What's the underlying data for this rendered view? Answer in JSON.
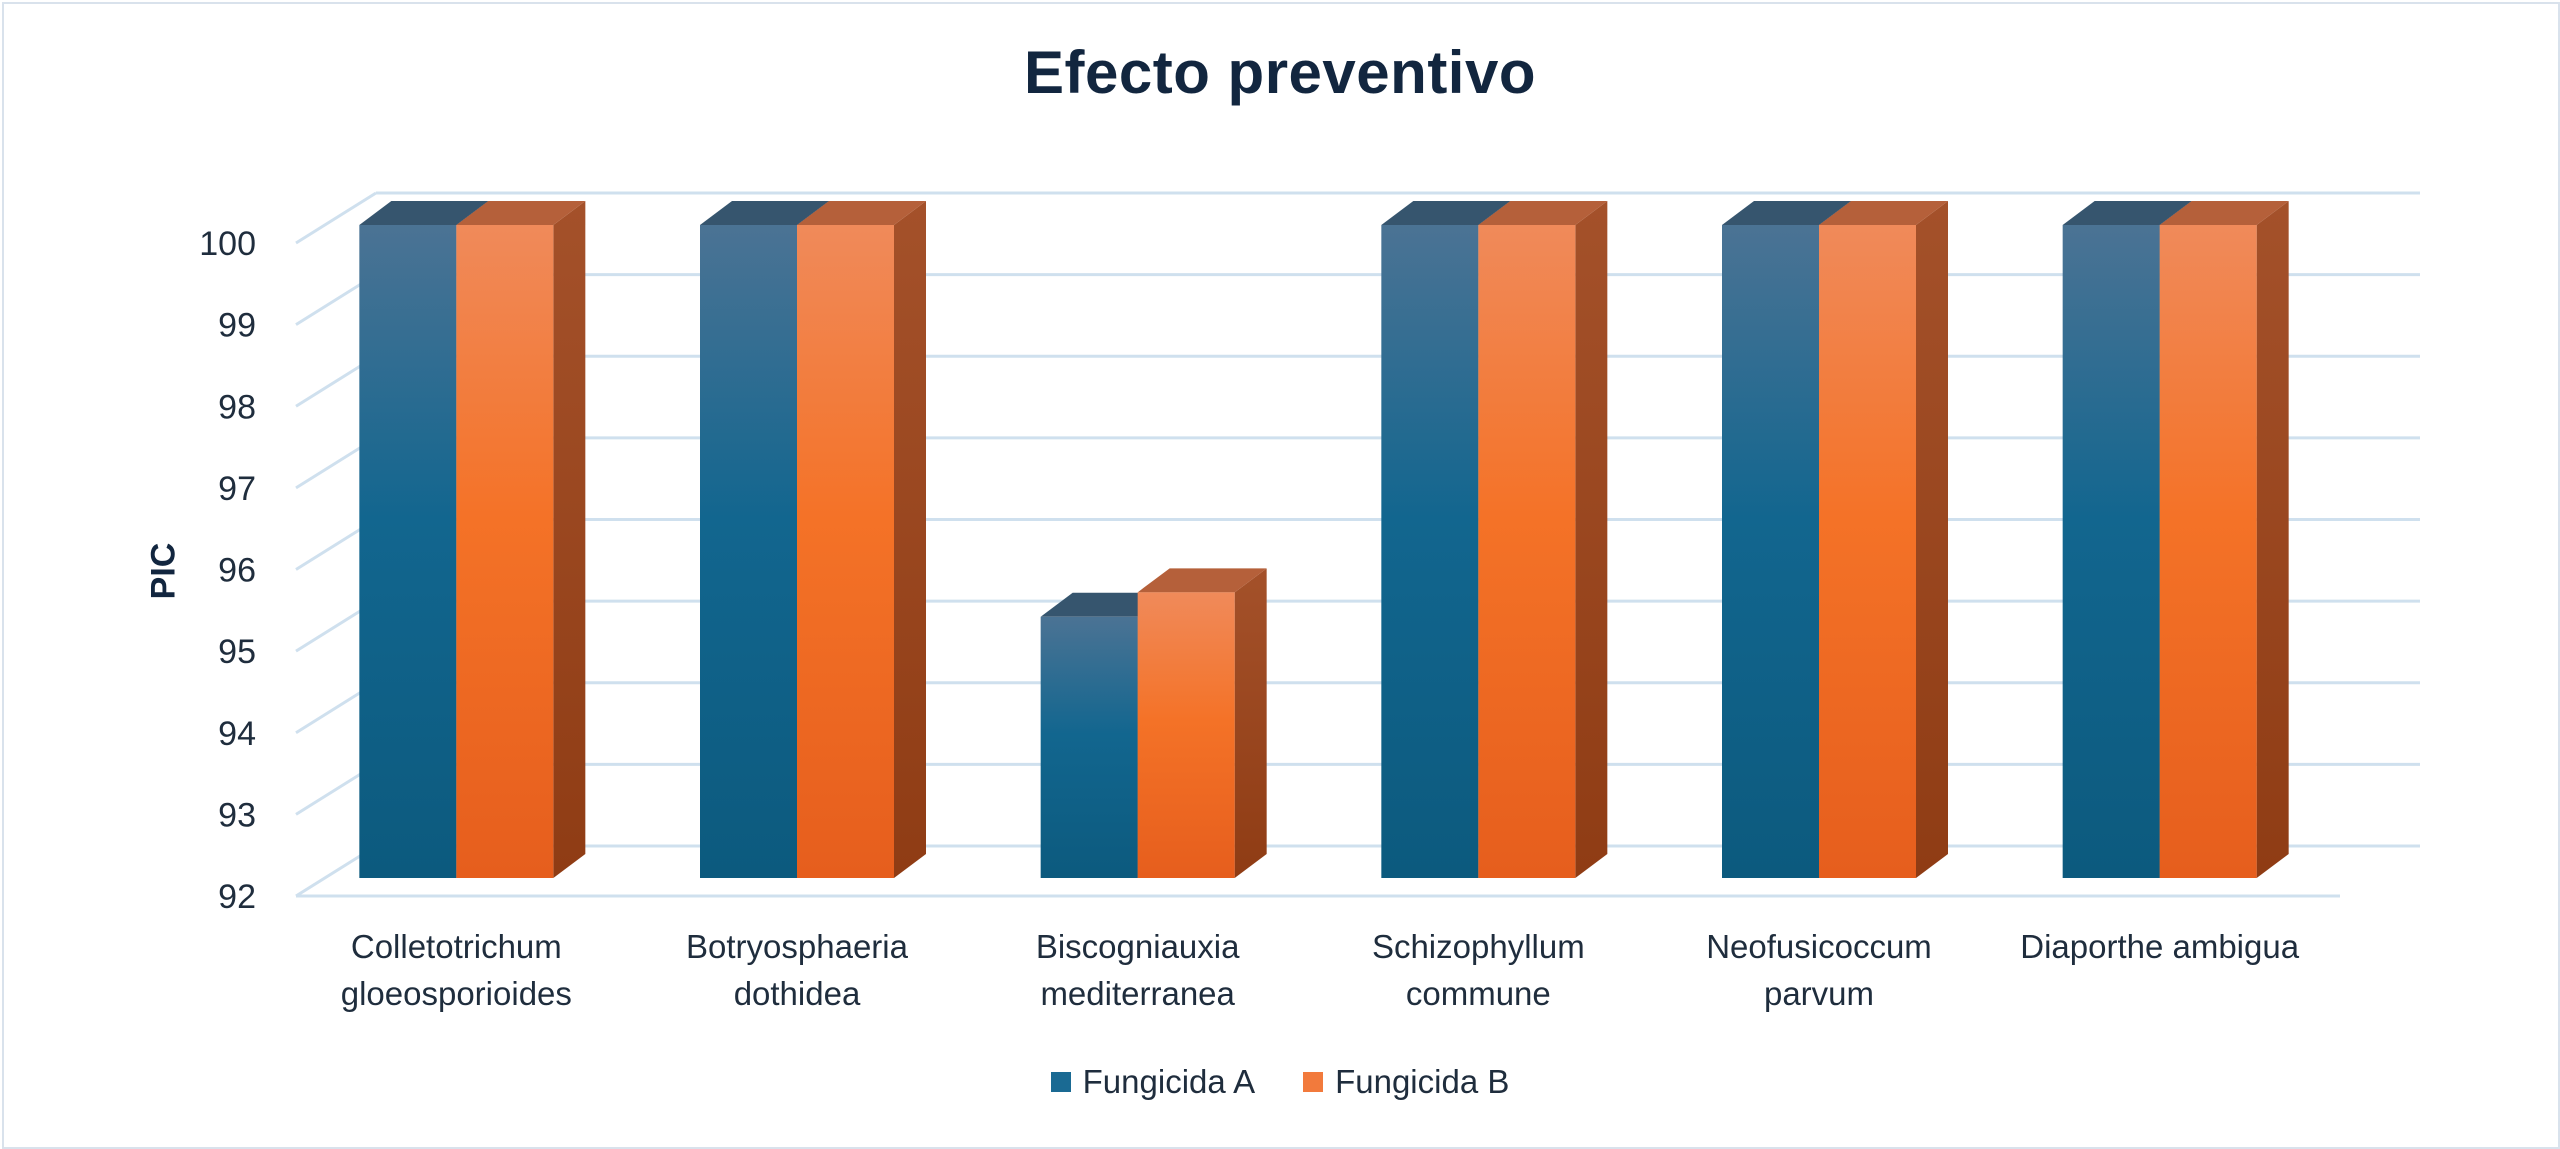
{
  "chart_data": {
    "type": "bar",
    "title": "Efecto preventivo",
    "ylabel": "PIC",
    "xlabel": "",
    "ylim": [
      92,
      100
    ],
    "yticks": [
      92,
      93,
      94,
      95,
      96,
      97,
      98,
      99,
      100
    ],
    "grid": true,
    "legend": "bottom",
    "categories": [
      [
        "Colletotrichum",
        "gloeosporioides"
      ],
      [
        "Botryosphaeria",
        "dothidea"
      ],
      [
        "Biscogniauxia",
        "mediterranea"
      ],
      [
        "Schizophyllum",
        "commune"
      ],
      [
        "Neofusicoccum",
        "parvum"
      ],
      [
        "Diaporthe ambigua"
      ]
    ],
    "series": [
      {
        "name": "Fungicida A",
        "color": "#1a6a93",
        "values": [
          100,
          100,
          95.2,
          100,
          100,
          100
        ]
      },
      {
        "name": "Fungicida B",
        "color": "#f27a3c",
        "values": [
          100,
          100,
          95.5,
          100,
          100,
          100
        ]
      }
    ]
  }
}
